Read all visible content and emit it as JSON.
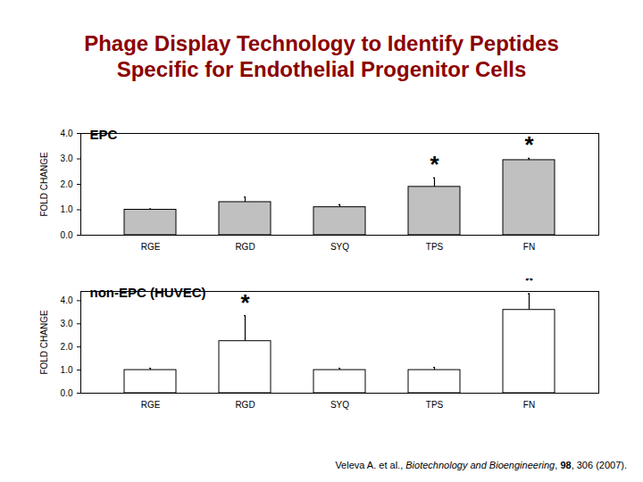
{
  "slide_title": [
    "Phage Display Technology to Identify Peptides",
    "Specific for Endothelial Progenitor Cells"
  ],
  "citation": [
    {
      "text": "Veleva A. et al., ",
      "style": "normal"
    },
    {
      "text": "Biotechnology and Bioengineering",
      "style": "italic"
    },
    {
      "text": ", ",
      "style": "normal"
    },
    {
      "text": "98",
      "style": "bold"
    },
    {
      "text": ", 306 (2007).",
      "style": "normal"
    }
  ],
  "chart_data": [
    {
      "type": "bar",
      "title": "EPC",
      "y_label": "FOLD CHANGE",
      "categories": [
        "RGE",
        "RGD",
        "SYQ",
        "TPS",
        "FN"
      ],
      "values": [
        1.0,
        1.3,
        1.1,
        1.9,
        2.95
      ],
      "errors": [
        0.03,
        0.2,
        0.1,
        0.35,
        0.07
      ],
      "annotations": [
        {
          "category": "TPS",
          "text": "*"
        },
        {
          "category": "FN",
          "text": "*"
        }
      ],
      "color": "#c0c0c0",
      "ylim": [
        0,
        4
      ],
      "yticks": [
        0,
        1,
        2,
        3,
        4
      ]
    },
    {
      "type": "bar",
      "title": "non-EPC (HUVEC)",
      "y_label": "FOLD CHANGE",
      "categories": [
        "RGE",
        "RGD",
        "SYQ",
        "TPS",
        "FN"
      ],
      "values": [
        1.0,
        2.25,
        1.0,
        1.0,
        3.6
      ],
      "errors": [
        0.08,
        1.1,
        0.08,
        0.12,
        0.7
      ],
      "annotations": [
        {
          "category": "RGD",
          "text": "*"
        },
        {
          "category": "FN",
          "text": "*"
        }
      ],
      "color": "#ffffff",
      "ylim": [
        0,
        4.4
      ],
      "yticks": [
        0,
        1,
        2,
        3,
        4
      ]
    }
  ]
}
